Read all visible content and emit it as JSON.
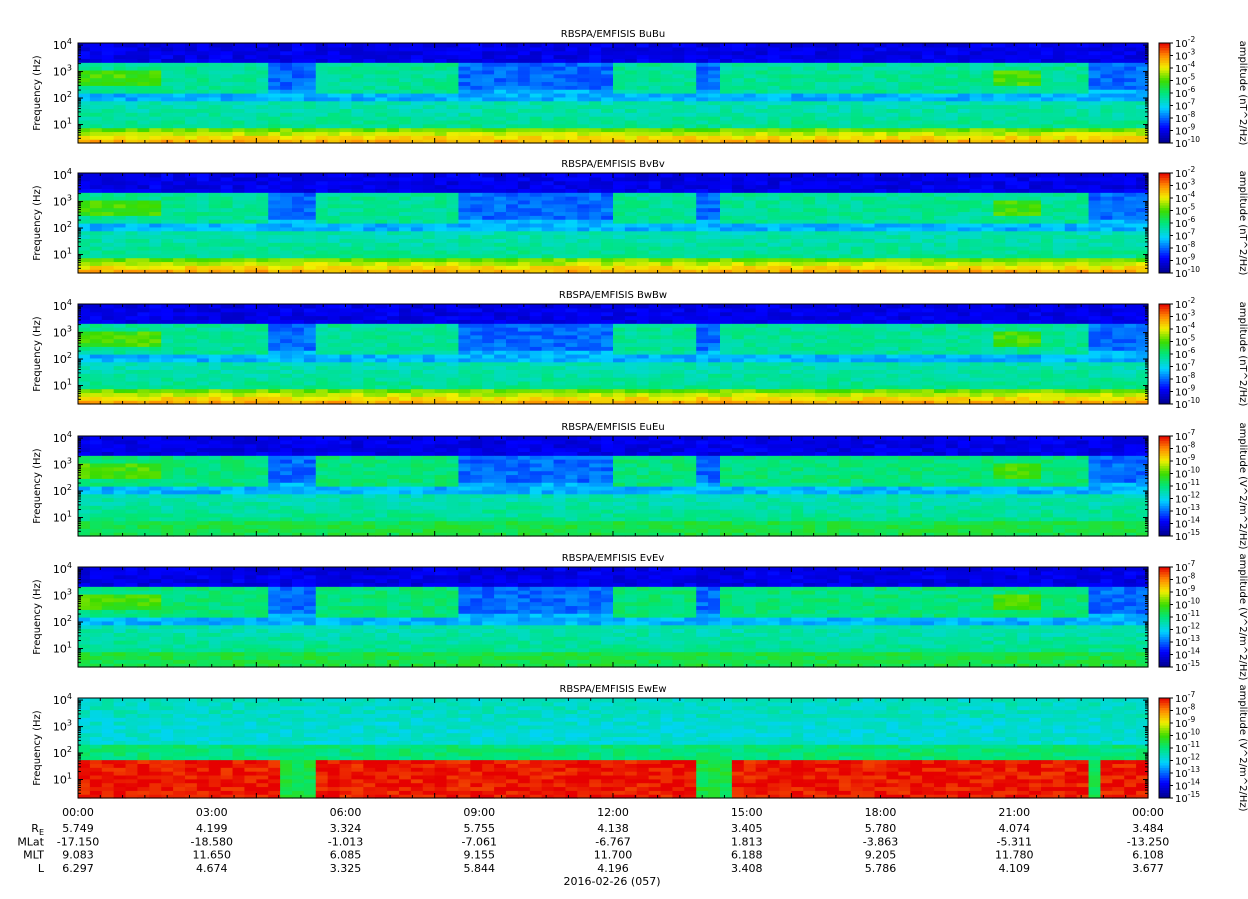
{
  "chart_data": {
    "type": "heatmap",
    "date_label": "2016-02-26 (057)",
    "x_tick_labels": [
      "00:00",
      "03:00",
      "06:00",
      "09:00",
      "12:00",
      "15:00",
      "18:00",
      "21:00",
      "00:00"
    ],
    "y_axis": {
      "label": "Frequency (Hz)",
      "scale": "log",
      "range": [
        2,
        12000
      ],
      "ticks": [
        {
          "value": 10,
          "mant": "10",
          "exp": "1"
        },
        {
          "value": 100,
          "mant": "10",
          "exp": "2"
        },
        {
          "value": 1000,
          "mant": "10",
          "exp": "3"
        },
        {
          "value": 10000,
          "mant": "10",
          "exp": "4"
        }
      ]
    },
    "panels": [
      {
        "title": "RBSPA/EMFISIS  BuBu",
        "colorbar_label": "amplitude (nT^2/Hz)",
        "colorbar_exponents": [
          "-2",
          "-3",
          "-4",
          "-5",
          "-6",
          "-7",
          "-8",
          "-9",
          "-10"
        ],
        "kind": "B"
      },
      {
        "title": "RBSPA/EMFISIS  BvBv",
        "colorbar_label": "amplitude (nT^2/Hz)",
        "colorbar_exponents": [
          "-2",
          "-3",
          "-4",
          "-5",
          "-6",
          "-7",
          "-8",
          "-9",
          "-10"
        ],
        "kind": "B"
      },
      {
        "title": "RBSPA/EMFISIS  BwBw",
        "colorbar_label": "amplitude (nT^2/Hz)",
        "colorbar_exponents": [
          "-2",
          "-3",
          "-4",
          "-5",
          "-6",
          "-7",
          "-8",
          "-9",
          "-10"
        ],
        "kind": "B"
      },
      {
        "title": "RBSPA/EMFISIS  EuEu",
        "colorbar_label": "amplitude (V^2/m^2/Hz)",
        "colorbar_exponents": [
          "-7",
          "-8",
          "-9",
          "-10",
          "-11",
          "-12",
          "-13",
          "-14",
          "-15"
        ],
        "kind": "E"
      },
      {
        "title": "RBSPA/EMFISIS  EvEv",
        "colorbar_label": "amplitude (V^2/m^2/Hz)",
        "colorbar_exponents": [
          "-7",
          "-8",
          "-9",
          "-10",
          "-11",
          "-12",
          "-13",
          "-14",
          "-15"
        ],
        "kind": "E"
      },
      {
        "title": "RBSPA/EMFISIS  EwEw",
        "colorbar_label": "amplitude (V^2/m^2/Hz)",
        "colorbar_exponents": [
          "-7",
          "-8",
          "-9",
          "-10",
          "-11",
          "-12",
          "-13",
          "-14",
          "-15"
        ],
        "kind": "Ew"
      }
    ],
    "colorbar_tick_base": "10",
    "ephemeris": [
      {
        "label": "R",
        "sub": "E",
        "values": [
          "5.749",
          "4.199",
          "3.324",
          "5.755",
          "4.138",
          "3.405",
          "5.780",
          "4.074",
          "3.484"
        ]
      },
      {
        "label": "MLat",
        "sub": "",
        "values": [
          "-17.150",
          "-18.580",
          "-1.013",
          "-7.061",
          "-6.767",
          "1.813",
          "-3.863",
          "-5.311",
          "-13.250"
        ]
      },
      {
        "label": "MLT",
        "sub": "",
        "values": [
          "9.083",
          "11.650",
          "6.085",
          "9.155",
          "11.700",
          "6.188",
          "9.205",
          "11.780",
          "6.108"
        ]
      },
      {
        "label": "L",
        "sub": "",
        "values": [
          "6.297",
          "4.674",
          "3.325",
          "5.844",
          "4.196",
          "3.408",
          "5.786",
          "4.109",
          "3.677"
        ]
      }
    ]
  }
}
